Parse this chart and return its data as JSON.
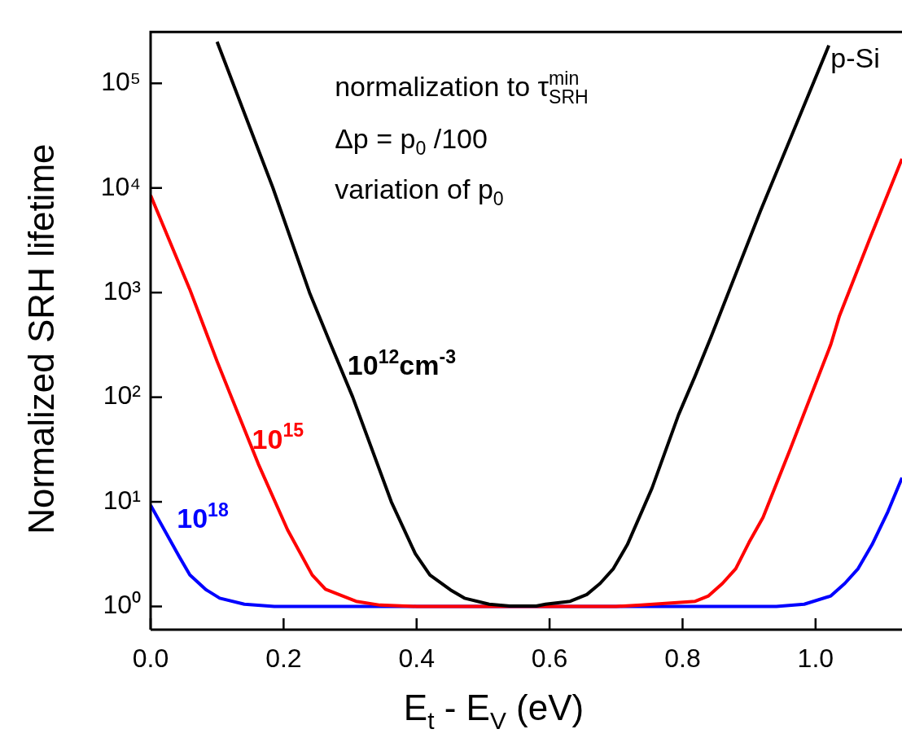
{
  "chart_data": {
    "type": "line",
    "xlabel": "E$_{t}$ - E$_{V}$ (eV)",
    "ylabel": "Normalized SRH lifetime",
    "log": "y",
    "legend": false,
    "grid": false,
    "marker": "none",
    "line_style": "solid",
    "xlim": [
      0,
      1.13
    ],
    "ylim": [
      0.6,
      310000
    ],
    "xticks": [
      {
        "value": 0,
        "label": "0.0"
      },
      {
        "value": 0.2,
        "label": "0.2"
      },
      {
        "value": 0.4,
        "label": "0.4"
      },
      {
        "value": 0.6,
        "label": "0.6"
      },
      {
        "value": 0.8,
        "label": "0.8"
      },
      {
        "value": 1,
        "label": "1.0"
      }
    ],
    "yticks": [
      {
        "value": 1,
        "label": "10⁰"
      },
      {
        "value": 10,
        "label": "10¹"
      },
      {
        "value": 100,
        "label": "10²"
      },
      {
        "value": 1000,
        "label": "10³"
      },
      {
        "value": 10000,
        "label": "10⁴"
      },
      {
        "value": 100000,
        "label": "10⁵"
      }
    ],
    "series": [
      {
        "name": "10$^{12}$cm$^{-3}$",
        "color": "#000000",
        "x": [
          0.1,
          0.14,
          0.184,
          0.239,
          0.27,
          0.304,
          0.362,
          0.398,
          0.42,
          0.451,
          0.472,
          0.509,
          0.54,
          0.58,
          0.594,
          0.631,
          0.656,
          0.676,
          0.696,
          0.717,
          0.754,
          0.794,
          0.819,
          0.843,
          0.917,
          0.966,
          1.02
        ],
        "values": [
          250000,
          54000,
          10000,
          1000,
          330,
          100,
          10,
          3.2,
          2.0,
          1.44,
          1.2,
          1.05,
          1.01,
          1.01,
          1.05,
          1.12,
          1.3,
          1.66,
          2.3,
          3.9,
          13.5,
          68,
          160,
          380,
          6000,
          34000,
          230000
        ]
      },
      {
        "name": "10$^{15}$",
        "color": "#ff0000",
        "x": [
          0,
          0.059,
          0.1,
          0.162,
          0.206,
          0.243,
          0.263,
          0.309,
          0.345,
          0.4,
          0.7,
          0.738,
          0.819,
          0.839,
          0.86,
          0.88,
          0.9,
          0.921,
          0.962,
          1.023,
          1.036,
          1.081,
          1.13
        ],
        "values": [
          8500,
          1070,
          220,
          23,
          5.4,
          2.0,
          1.46,
          1.12,
          1.03,
          1.0,
          1.0,
          1.03,
          1.12,
          1.26,
          1.66,
          2.3,
          4.1,
          7.1,
          32,
          320,
          600,
          3200,
          19000
        ]
      },
      {
        "name": "10$^{18}$",
        "color": "#0000ff",
        "x": [
          0,
          0.043,
          0.059,
          0.083,
          0.104,
          0.141,
          0.186,
          0.941,
          0.983,
          1.023,
          1.044,
          1.064,
          1.085,
          1.109,
          1.13
        ],
        "values": [
          9.3,
          3.0,
          2.0,
          1.45,
          1.2,
          1.05,
          1.0,
          1.0,
          1.05,
          1.26,
          1.66,
          2.3,
          3.9,
          8.1,
          17
        ]
      }
    ],
    "annotations": [
      "normalization to τ$_{SRH}$$^{min}$",
      "Δp = p$_{0}$ /100",
      "variation of p$_{0}$",
      "p-Si"
    ]
  }
}
